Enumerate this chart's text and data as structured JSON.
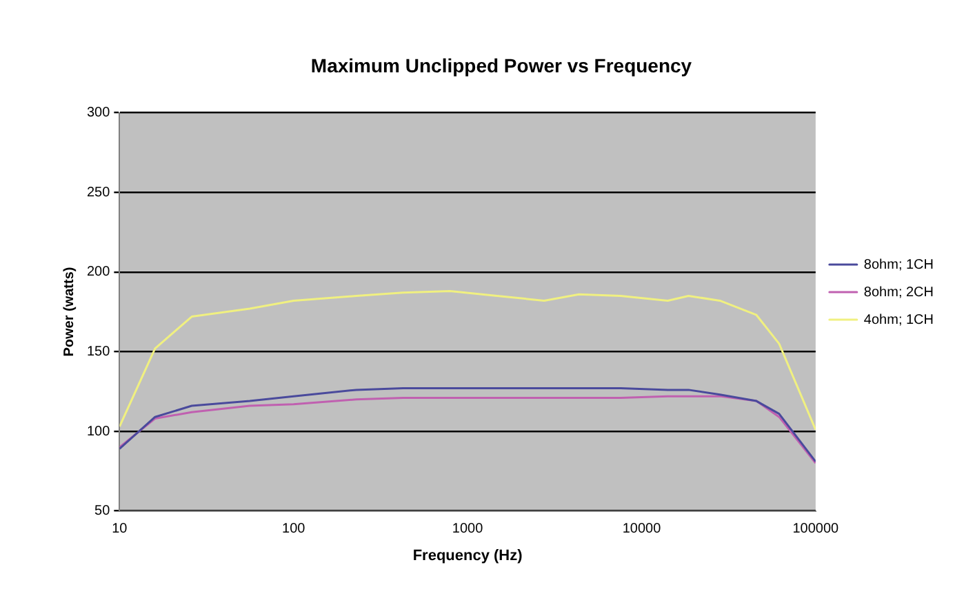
{
  "chart_data": {
    "type": "line",
    "title": "Maximum Unclipped Power vs Frequency",
    "xlabel": "Frequency (Hz)",
    "ylabel": "Power (watts)",
    "x": [
      10,
      16,
      26,
      56,
      100,
      229,
      426,
      794,
      1479,
      2754,
      4365,
      7586,
      14125,
      18600,
      28200,
      45700,
      61700,
      100000
    ],
    "series": [
      {
        "name": "8ohm; 1CH",
        "color": "#4a4a9c",
        "values": [
          89,
          109,
          116,
          119,
          122,
          126,
          127,
          127,
          127,
          127,
          127,
          127,
          126,
          126,
          123,
          119,
          111,
          81
        ]
      },
      {
        "name": "8ohm; 2CH",
        "color": "#c060b0",
        "values": [
          90,
          108,
          112,
          116,
          117,
          120,
          121,
          121,
          121,
          121,
          121,
          121,
          122,
          122,
          122,
          119,
          109,
          80
        ]
      },
      {
        "name": "4ohm; 1CH",
        "color": "#f0f080",
        "values": [
          103,
          152,
          172,
          177,
          182,
          185,
          187,
          188,
          185,
          182,
          186,
          185,
          182,
          185,
          182,
          173,
          155,
          101
        ]
      }
    ],
    "log": "x",
    "xlim": [
      10,
      100000
    ],
    "xticks": [
      10,
      100,
      1000,
      10000,
      100000
    ],
    "ylim": [
      50,
      300
    ],
    "yticks": [
      50,
      100,
      150,
      200,
      250,
      300
    ],
    "grid": "y",
    "legend": "right",
    "marker": "none",
    "line_style": "solid"
  }
}
